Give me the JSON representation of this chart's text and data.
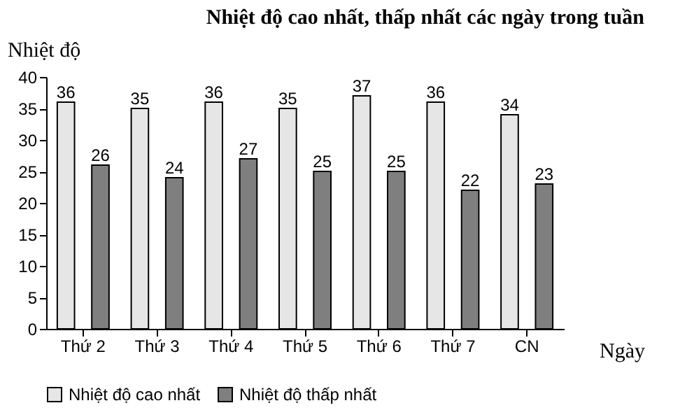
{
  "chart_data": {
    "type": "bar",
    "title": "Nhiệt độ cao nhất, thấp nhất các ngày trong tuần",
    "ylabel": "Nhiệt độ",
    "xlabel": "Ngày",
    "categories": [
      "Thứ 2",
      "Thứ 3",
      "Thứ 4",
      "Thứ 5",
      "Thứ 6",
      "Thứ 7",
      "CN"
    ],
    "series": [
      {
        "name": "Nhiệt độ cao nhất",
        "color": "#e6e6e6",
        "values": [
          36,
          35,
          36,
          35,
          37,
          36,
          34
        ]
      },
      {
        "name": "Nhiệt độ thấp nhất",
        "color": "#7f7f7f",
        "values": [
          26,
          24,
          27,
          25,
          25,
          22,
          23
        ]
      }
    ],
    "ylim": [
      0,
      40
    ],
    "yticks": [
      0,
      5,
      10,
      15,
      20,
      25,
      30,
      35,
      40
    ],
    "grid": false,
    "legend": "bottom",
    "data_labels": true
  }
}
